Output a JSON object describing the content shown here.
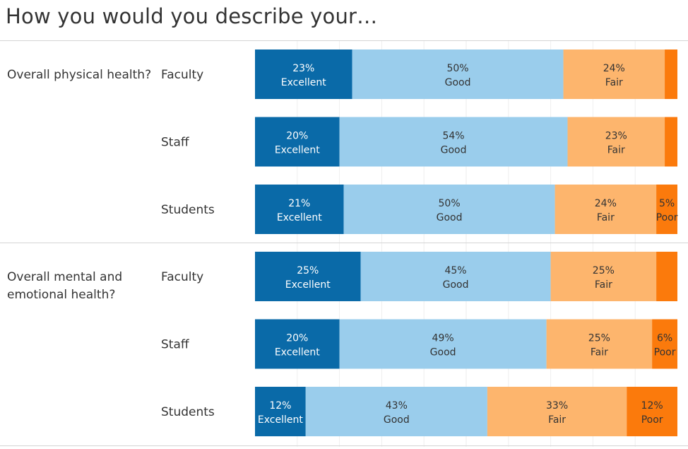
{
  "title": "How you would you describe your…",
  "chart_data": {
    "type": "bar",
    "orientation": "horizontal",
    "stacked": true,
    "categories_legend": [
      "Excellent",
      "Good",
      "Fair",
      "Poor"
    ],
    "colors": {
      "Excellent": "#0a6aa8",
      "Good": "#9acdec",
      "Fair": "#fdb56d",
      "Poor": "#fb7a0c"
    },
    "text_colors": {
      "Excellent": "#ffffff",
      "Good": "#333333",
      "Fair": "#333333",
      "Poor": "#333333"
    },
    "groups": [
      {
        "label": "Overall physical health?",
        "rows": [
          {
            "label": "Faculty",
            "values": [
              23,
              50,
              24,
              3
            ],
            "show_labels": [
              true,
              true,
              true,
              false
            ]
          },
          {
            "label": "Staff",
            "values": [
              20,
              54,
              23,
              3
            ],
            "show_labels": [
              true,
              true,
              true,
              false
            ]
          },
          {
            "label": "Students",
            "values": [
              21,
              50,
              24,
              5
            ],
            "show_labels": [
              true,
              true,
              true,
              true
            ]
          }
        ]
      },
      {
        "label": "Overall mental and emotional health?",
        "rows": [
          {
            "label": "Faculty",
            "values": [
              25,
              45,
              25,
              5
            ],
            "show_labels": [
              true,
              true,
              true,
              false
            ]
          },
          {
            "label": "Staff",
            "values": [
              20,
              49,
              25,
              6
            ],
            "show_labels": [
              true,
              true,
              true,
              true
            ]
          },
          {
            "label": "Students",
            "values": [
              12,
              43,
              33,
              12
            ],
            "show_labels": [
              true,
              true,
              true,
              true
            ]
          }
        ]
      }
    ],
    "xlim": [
      0,
      100
    ]
  }
}
